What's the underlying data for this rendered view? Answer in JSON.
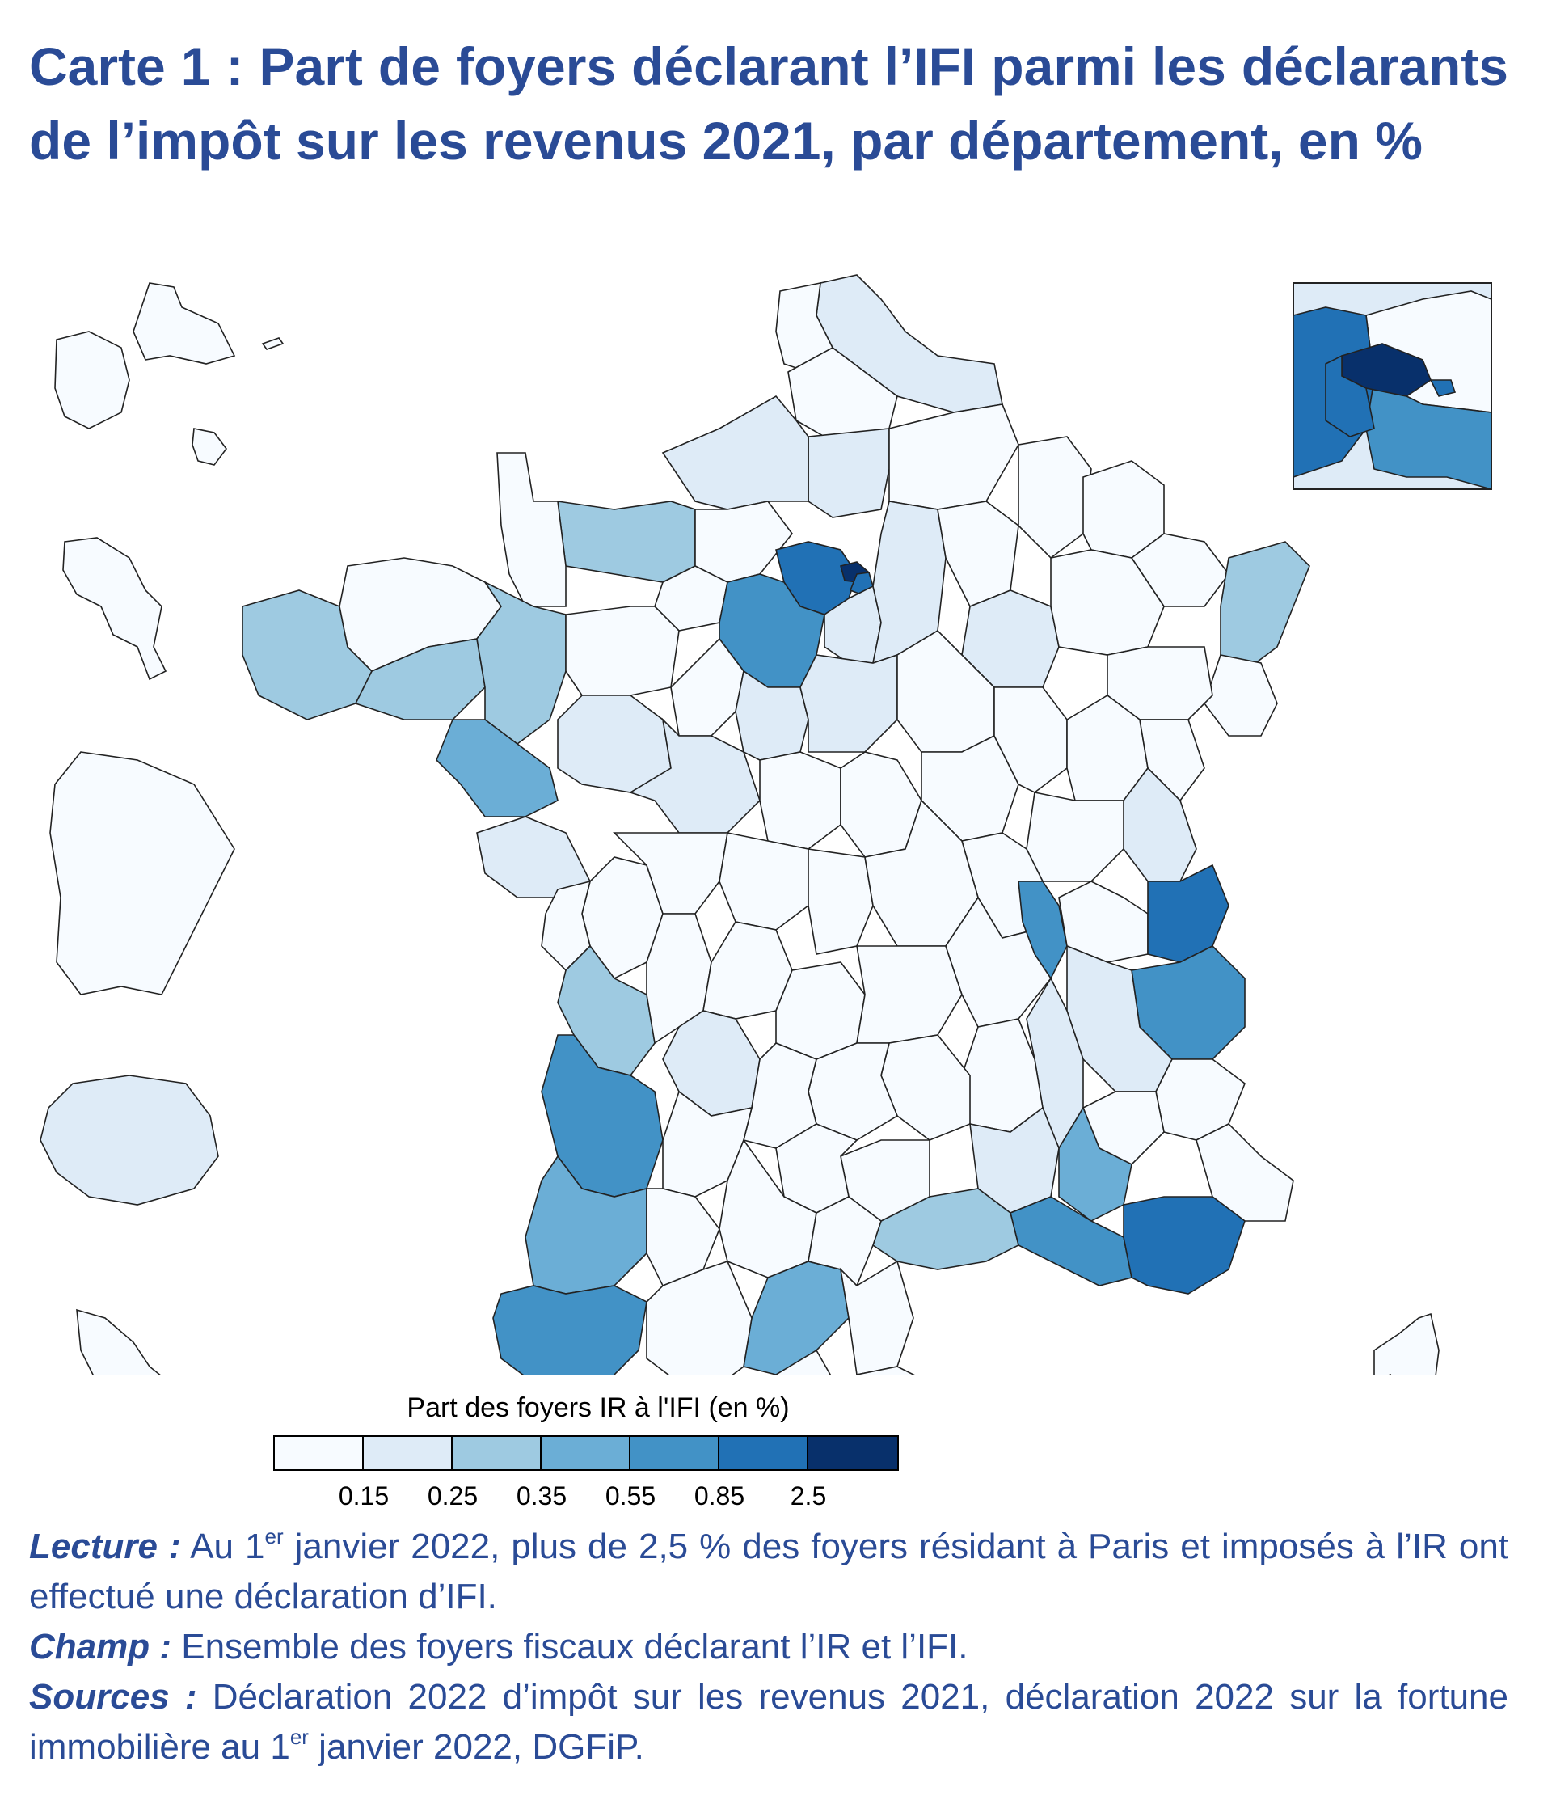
{
  "title": "Carte 1 : Part de foyers déclarant l’IFI parmi les déclarants de l’impôt sur les revenus 2021, par département, en %",
  "legend": {
    "title": "Part des foyers IR à l'IFI (en %)",
    "colors": [
      "#f7fbff",
      "#deebf7",
      "#9ecae1",
      "#6baed6",
      "#4292c6",
      "#2171b5",
      "#08306b"
    ],
    "breaks": [
      "0.15",
      "0.25",
      "0.35",
      "0.55",
      "0.85",
      "2.5"
    ]
  },
  "notes": {
    "lecture_label": "Lecture :",
    "lecture_text_1": " Au 1",
    "lecture_sup": "er",
    "lecture_text_2": " janvier 2022, plus de 2,5 % des foyers résidant à Paris et imposés à l’IR ont effectué une déclaration d’IFI.",
    "champ_label": "Champ :",
    "champ_text": " Ensemble des foyers fiscaux déclarant l’IR et l’IFI.",
    "sources_label": "Sources :",
    "sources_text_1": " Déclaration 2022 d’impôt sur les revenus 2021, déclaration 2022 sur la fortune immobilière au 1",
    "sources_sup": "er",
    "sources_text_2": " janvier 2022, DGFiP."
  }
}
